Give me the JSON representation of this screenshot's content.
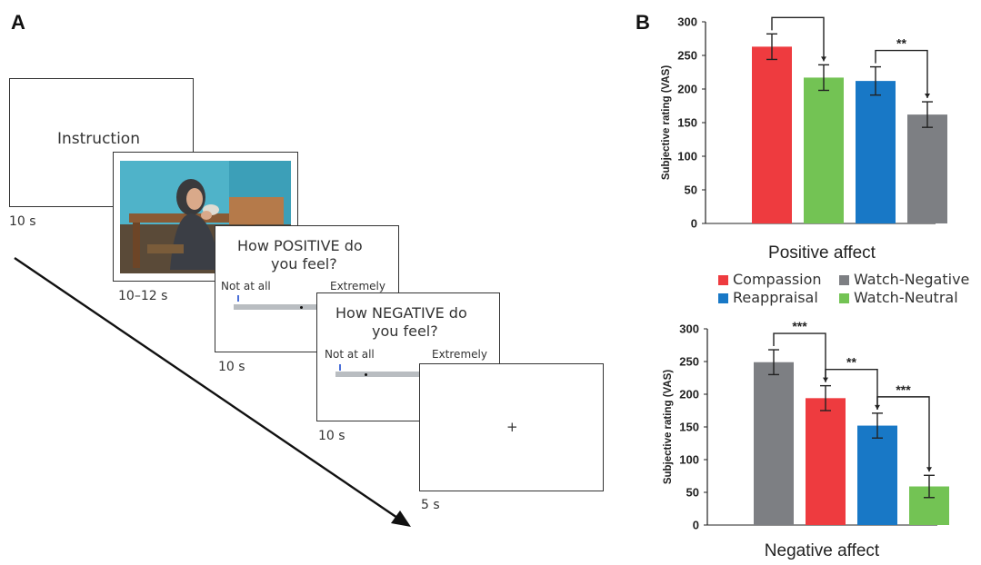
{
  "panel_a": {
    "letter": "A",
    "instruction_text": "Instruction",
    "instruction_duration": "10 s",
    "image_duration": "10–12 s",
    "positive_question_line1": "How POSITIVE do",
    "positive_question_line2": "you feel?",
    "positive_low_anchor": "Not at all",
    "positive_high_anchor": "Extremely",
    "positive_duration": "10 s",
    "negative_question_line1": "How NEGATIVE do",
    "negative_question_line2": "you feel?",
    "negative_low_anchor": "Not at all",
    "negative_high_anchor": "Extremely",
    "negative_duration": "10 s",
    "fixation_symbol": "+",
    "fixation_duration": "5 s"
  },
  "panel_b": {
    "letter": "B",
    "legend": [
      {
        "label": "Compassion",
        "color": "#ee3b3f"
      },
      {
        "label": "Watch-Negative",
        "color": "#7d7f83"
      },
      {
        "label": "Reappraisal",
        "color": "#1878c6"
      },
      {
        "label": "Watch-Neutral",
        "color": "#73c354"
      }
    ]
  },
  "chart_data": [
    {
      "type": "bar",
      "title": "Positive affect",
      "ylabel": "Subjective rating (VAS)",
      "ylim": [
        0,
        300
      ],
      "yticks": [
        "0",
        "50",
        "100",
        "150",
        "200",
        "250",
        "300"
      ],
      "categories": [
        "Compassion",
        "Watch-Neutral",
        "Reappraisal",
        "Watch-Negative"
      ],
      "values": [
        263,
        217,
        212,
        162
      ],
      "errors": [
        19,
        19,
        21,
        19
      ],
      "colors": [
        "#ee3b3f",
        "#73c354",
        "#1878c6",
        "#7d7f83"
      ],
      "significance": [
        {
          "from": 0,
          "to": 1,
          "label": "**"
        },
        {
          "from": 2,
          "to": 3,
          "label": "**"
        }
      ],
      "grid": false
    },
    {
      "type": "bar",
      "title": "Negative affect",
      "ylabel": "Subjective rating (VAS)",
      "ylim": [
        0,
        300
      ],
      "yticks": [
        "0",
        "50",
        "100",
        "150",
        "200",
        "250",
        "300"
      ],
      "categories": [
        "Watch-Negative",
        "Compassion",
        "Reappraisal",
        "Watch-Neutral"
      ],
      "values": [
        249,
        194,
        152,
        59
      ],
      "errors": [
        19,
        19,
        19,
        17
      ],
      "colors": [
        "#7d7f83",
        "#ee3b3f",
        "#1878c6",
        "#73c354"
      ],
      "significance": [
        {
          "from": 0,
          "to": 1,
          "label": "***"
        },
        {
          "from": 1,
          "to": 2,
          "label": "**"
        },
        {
          "from": 2,
          "to": 3,
          "label": "***"
        }
      ],
      "grid": false
    }
  ]
}
